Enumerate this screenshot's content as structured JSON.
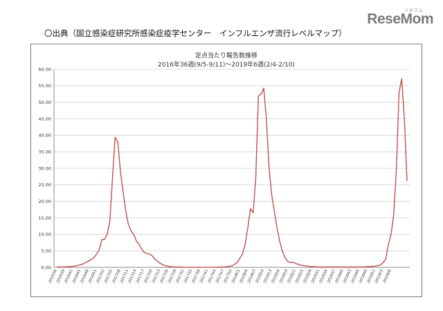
{
  "logo": {
    "main": "ReseMom",
    "sub": "リセマム"
  },
  "source_text": "〇出典（国立感染症研究所感染症疫学センター　インフルエンザ流行レベルマップ）",
  "chart_data": {
    "type": "line",
    "title": "定点当たり報告数推移",
    "subtitle": "2016年36週(9/5-9/11)～2019年6週(2/4-2/10)",
    "xlabel": "",
    "ylabel": "",
    "ylim": [
      0,
      60
    ],
    "yticks": [
      "0.00",
      "5.00",
      "10.00",
      "15.00",
      "20.00",
      "25.00",
      "30.00",
      "35.00",
      "40.00",
      "45.00",
      "50.00",
      "55.00",
      "60.00"
    ],
    "grid": true,
    "line_color": "#c0504d",
    "x_tick_labels": [
      "201636",
      "201639",
      "201642",
      "201645",
      "201648",
      "201651",
      "201702",
      "201705",
      "201708",
      "201711",
      "201714",
      "201717",
      "201720",
      "201723",
      "201726",
      "201729",
      "201732",
      "201735",
      "201738",
      "201741",
      "201744",
      "201747",
      "201750",
      "201801",
      "201804",
      "201807",
      "201810",
      "201813",
      "201816",
      "201819",
      "201822",
      "201825",
      "201828",
      "201831",
      "201834",
      "201837",
      "201840",
      "201843",
      "201846",
      "201849",
      "201852",
      "201903",
      "201906"
    ],
    "series": [
      {
        "values": [
          0.1,
          0.1,
          0.1,
          0.1,
          0.2,
          0.2,
          0.3,
          0.4,
          0.6,
          0.8,
          1.1,
          1.5,
          1.9,
          2.4,
          3.0,
          4.0,
          5.2,
          8.4,
          8.5,
          10.0,
          14.0,
          27.0,
          39.4,
          38.0,
          29.0,
          23.0,
          17.0,
          13.0,
          11.0,
          10.0,
          8.0,
          7.0,
          5.5,
          4.5,
          4.2,
          4.0,
          3.5,
          2.5,
          1.8,
          1.2,
          0.8,
          0.5,
          0.3,
          0.2,
          0.1,
          0.1,
          0.1,
          0.1,
          0.05,
          0.05,
          0.05,
          0.05,
          0.05,
          0.05,
          0.05,
          0.05,
          0.05,
          0.05,
          0.05,
          0.05,
          0.05,
          0.1,
          0.1,
          0.1,
          0.2,
          0.3,
          0.5,
          0.9,
          1.5,
          2.8,
          4.0,
          7.0,
          12.0,
          17.8,
          16.5,
          27.0,
          51.9,
          52.5,
          54.3,
          45.0,
          30.0,
          22.0,
          17.0,
          12.0,
          8.0,
          5.0,
          3.0,
          1.8,
          1.5,
          1.6,
          1.2,
          0.9,
          0.7,
          0.5,
          0.4,
          0.3,
          0.2,
          0.2,
          0.1,
          0.1,
          0.1,
          0.1,
          0.1,
          0.1,
          0.1,
          0.1,
          0.1,
          0.1,
          0.1,
          0.1,
          0.1,
          0.1,
          0.1,
          0.1,
          0.1,
          0.1,
          0.15,
          0.2,
          0.25,
          0.3,
          0.35,
          0.5,
          0.8,
          1.4,
          2.5,
          7.0,
          10.0,
          16.0,
          30.0,
          53.0,
          57.1,
          45.0,
          26.2
        ]
      }
    ]
  }
}
